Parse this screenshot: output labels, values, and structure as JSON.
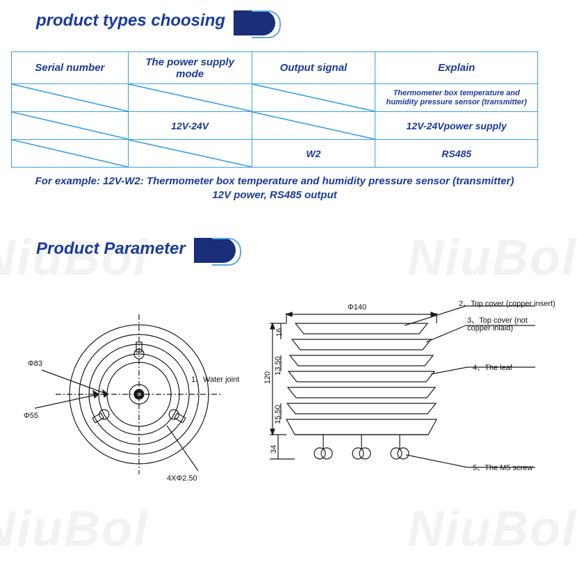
{
  "watermark_text": "NiuBol",
  "sections": {
    "types": {
      "title": "product types choosing"
    },
    "params": {
      "title": "Product Parameter"
    }
  },
  "table": {
    "headers": [
      "Serial number",
      "The power supply mode",
      "Output signal",
      "Explain"
    ],
    "rows": [
      {
        "cells": [
          "",
          "",
          "",
          "Thermometer box temperature and humidity pressure sensor (transmitter)"
        ],
        "diag": [
          true,
          true,
          true,
          false
        ],
        "small": [
          false,
          false,
          false,
          true
        ]
      },
      {
        "cells": [
          "",
          "12V-24V",
          "",
          "12V-24Vpower supply"
        ],
        "diag": [
          true,
          false,
          true,
          false
        ],
        "small": [
          false,
          false,
          false,
          false
        ]
      },
      {
        "cells": [
          "",
          "",
          "W2",
          "RS485"
        ],
        "diag": [
          true,
          true,
          false,
          false
        ],
        "small": [
          false,
          false,
          false,
          false
        ]
      }
    ],
    "example": "For example: 12V-W2: Thermometer box temperature and humidity pressure sensor (transmitter) 12V power, RS485 output"
  },
  "colors": {
    "brand_blue": "#1a3a9c",
    "pill_dark": "#1a2e7a",
    "table_border": "#3aa0e8",
    "accent_outline": "#5aa8e8",
    "watermark": "#f2f2f2",
    "ink": "#1a1a1a"
  },
  "top_diagram": {
    "dims": {
      "d_outer_label": "Φ83",
      "d_inner_label": "Φ55",
      "holes_label": "4XΦ2.50"
    },
    "callouts": {
      "water_joint": "1、Water joint"
    }
  },
  "side_diagram": {
    "dims": {
      "width_label": "Φ140",
      "total_h": "120",
      "top_gap": "16",
      "layer_gap1": "13.50",
      "layer_gap2": "15.50",
      "foot_h": "34"
    },
    "callouts": {
      "top_copper": "2、Top cover (copper insert)",
      "top_no_copper": "3、Top cover (not copper inlaid)",
      "leaf": "4、The leaf",
      "screw": "5、The M5 screw"
    }
  }
}
